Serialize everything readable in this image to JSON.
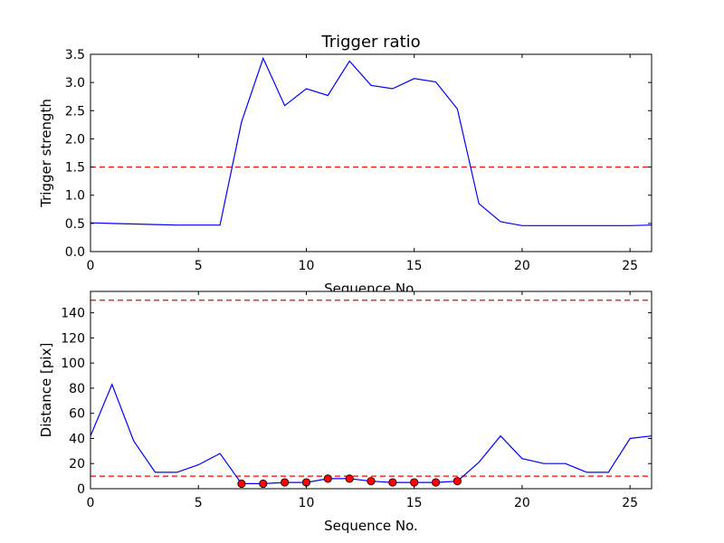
{
  "chart_data": [
    {
      "type": "line",
      "title": "Trigger ratio",
      "xlabel": "Sequence No.",
      "ylabel": "Trigger strength",
      "xlim": [
        0,
        26
      ],
      "ylim": [
        0,
        3.5
      ],
      "xticks": [
        0,
        5,
        10,
        15,
        20,
        25
      ],
      "xtick_labels": [
        "0",
        "5",
        "10",
        "15",
        "20",
        "25"
      ],
      "yticks": [
        0,
        0.5,
        1,
        1.5,
        2,
        2.5,
        3,
        3.5
      ],
      "ytick_labels": [
        "0.0",
        "0.5",
        "1.0",
        "1.5",
        "2.0",
        "2.5",
        "3.0",
        "3.5"
      ],
      "grid": false,
      "series": [
        {
          "color": "#0000ff",
          "style": "solid",
          "x": [
            0,
            1,
            2,
            3,
            4,
            5,
            6,
            7,
            8,
            9,
            10,
            11,
            12,
            13,
            14,
            15,
            16,
            17,
            18,
            19,
            20,
            21,
            22,
            23,
            24,
            25,
            26
          ],
          "y": [
            0.51,
            0.5,
            0.49,
            0.48,
            0.47,
            0.47,
            0.47,
            2.3,
            3.43,
            2.59,
            2.89,
            2.77,
            3.38,
            2.95,
            2.89,
            3.07,
            3.01,
            2.53,
            0.85,
            0.53,
            0.46,
            0.46,
            0.46,
            0.46,
            0.46,
            0.46,
            0.47
          ]
        }
      ],
      "hlines": [
        {
          "y": 1.5,
          "color": "#ff0000",
          "style": "dashed"
        }
      ]
    },
    {
      "type": "line",
      "title": "",
      "xlabel": "Sequence No.",
      "ylabel": "Distance [pix]",
      "xlim": [
        0,
        26
      ],
      "ylim": [
        0,
        157
      ],
      "xticks": [
        0,
        5,
        10,
        15,
        20,
        25
      ],
      "xtick_labels": [
        "0",
        "5",
        "10",
        "15",
        "20",
        "25"
      ],
      "yticks": [
        0,
        20,
        40,
        60,
        80,
        100,
        120,
        140
      ],
      "ytick_labels": [
        "0",
        "20",
        "40",
        "60",
        "80",
        "100",
        "120",
        "140"
      ],
      "grid": false,
      "series": [
        {
          "color": "#0000ff",
          "style": "solid",
          "x": [
            0,
            1,
            2,
            3,
            4,
            5,
            6,
            7,
            8,
            9,
            10,
            11,
            12,
            13,
            14,
            15,
            16,
            17,
            18,
            19,
            20,
            21,
            22,
            23,
            24,
            25,
            26
          ],
          "y": [
            42,
            83,
            38,
            13,
            13,
            19,
            28,
            4,
            4,
            5,
            5,
            8,
            8,
            6,
            5,
            5,
            5,
            6,
            21,
            42,
            24,
            20,
            20,
            13,
            13,
            40,
            42
          ]
        },
        {
          "color": "#ff0000",
          "style": "markers",
          "x": [
            7,
            8,
            9,
            10,
            11,
            12,
            13,
            14,
            15,
            16,
            17
          ],
          "y": [
            4,
            4,
            5,
            5,
            8,
            8,
            6,
            5,
            5,
            5,
            6
          ]
        }
      ],
      "hlines": [
        {
          "y": 150,
          "color": "#ff0000",
          "style": "dashed"
        },
        {
          "y": 10,
          "color": "#ff0000",
          "style": "dashed"
        }
      ]
    }
  ]
}
